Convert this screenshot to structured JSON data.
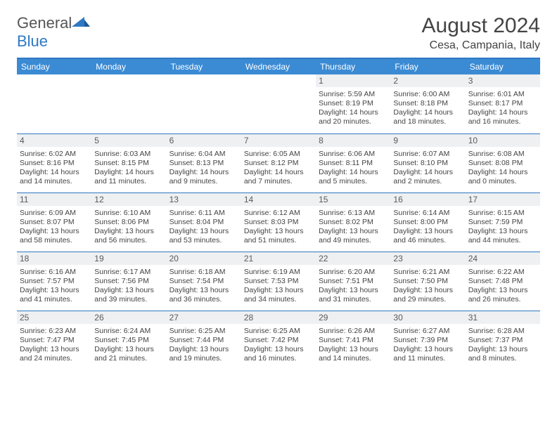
{
  "brand": {
    "name_part1": "General",
    "name_part2": "Blue"
  },
  "title": "August 2024",
  "location": "Cesa, Campania, Italy",
  "calendar": {
    "header_bg": "#3b8bd4",
    "divider_color": "#2f78c4",
    "daynum_bg": "#eef0f2",
    "text_color": "#444444",
    "columns": [
      "Sunday",
      "Monday",
      "Tuesday",
      "Wednesday",
      "Thursday",
      "Friday",
      "Saturday"
    ],
    "weeks": [
      [
        null,
        null,
        null,
        null,
        {
          "d": "1",
          "sunrise": "5:59 AM",
          "sunset": "8:19 PM",
          "dl": "14 hours and 20 minutes."
        },
        {
          "d": "2",
          "sunrise": "6:00 AM",
          "sunset": "8:18 PM",
          "dl": "14 hours and 18 minutes."
        },
        {
          "d": "3",
          "sunrise": "6:01 AM",
          "sunset": "8:17 PM",
          "dl": "14 hours and 16 minutes."
        }
      ],
      [
        {
          "d": "4",
          "sunrise": "6:02 AM",
          "sunset": "8:16 PM",
          "dl": "14 hours and 14 minutes."
        },
        {
          "d": "5",
          "sunrise": "6:03 AM",
          "sunset": "8:15 PM",
          "dl": "14 hours and 11 minutes."
        },
        {
          "d": "6",
          "sunrise": "6:04 AM",
          "sunset": "8:13 PM",
          "dl": "14 hours and 9 minutes."
        },
        {
          "d": "7",
          "sunrise": "6:05 AM",
          "sunset": "8:12 PM",
          "dl": "14 hours and 7 minutes."
        },
        {
          "d": "8",
          "sunrise": "6:06 AM",
          "sunset": "8:11 PM",
          "dl": "14 hours and 5 minutes."
        },
        {
          "d": "9",
          "sunrise": "6:07 AM",
          "sunset": "8:10 PM",
          "dl": "14 hours and 2 minutes."
        },
        {
          "d": "10",
          "sunrise": "6:08 AM",
          "sunset": "8:08 PM",
          "dl": "14 hours and 0 minutes."
        }
      ],
      [
        {
          "d": "11",
          "sunrise": "6:09 AM",
          "sunset": "8:07 PM",
          "dl": "13 hours and 58 minutes."
        },
        {
          "d": "12",
          "sunrise": "6:10 AM",
          "sunset": "8:06 PM",
          "dl": "13 hours and 56 minutes."
        },
        {
          "d": "13",
          "sunrise": "6:11 AM",
          "sunset": "8:04 PM",
          "dl": "13 hours and 53 minutes."
        },
        {
          "d": "14",
          "sunrise": "6:12 AM",
          "sunset": "8:03 PM",
          "dl": "13 hours and 51 minutes."
        },
        {
          "d": "15",
          "sunrise": "6:13 AM",
          "sunset": "8:02 PM",
          "dl": "13 hours and 49 minutes."
        },
        {
          "d": "16",
          "sunrise": "6:14 AM",
          "sunset": "8:00 PM",
          "dl": "13 hours and 46 minutes."
        },
        {
          "d": "17",
          "sunrise": "6:15 AM",
          "sunset": "7:59 PM",
          "dl": "13 hours and 44 minutes."
        }
      ],
      [
        {
          "d": "18",
          "sunrise": "6:16 AM",
          "sunset": "7:57 PM",
          "dl": "13 hours and 41 minutes."
        },
        {
          "d": "19",
          "sunrise": "6:17 AM",
          "sunset": "7:56 PM",
          "dl": "13 hours and 39 minutes."
        },
        {
          "d": "20",
          "sunrise": "6:18 AM",
          "sunset": "7:54 PM",
          "dl": "13 hours and 36 minutes."
        },
        {
          "d": "21",
          "sunrise": "6:19 AM",
          "sunset": "7:53 PM",
          "dl": "13 hours and 34 minutes."
        },
        {
          "d": "22",
          "sunrise": "6:20 AM",
          "sunset": "7:51 PM",
          "dl": "13 hours and 31 minutes."
        },
        {
          "d": "23",
          "sunrise": "6:21 AM",
          "sunset": "7:50 PM",
          "dl": "13 hours and 29 minutes."
        },
        {
          "d": "24",
          "sunrise": "6:22 AM",
          "sunset": "7:48 PM",
          "dl": "13 hours and 26 minutes."
        }
      ],
      [
        {
          "d": "25",
          "sunrise": "6:23 AM",
          "sunset": "7:47 PM",
          "dl": "13 hours and 24 minutes."
        },
        {
          "d": "26",
          "sunrise": "6:24 AM",
          "sunset": "7:45 PM",
          "dl": "13 hours and 21 minutes."
        },
        {
          "d": "27",
          "sunrise": "6:25 AM",
          "sunset": "7:44 PM",
          "dl": "13 hours and 19 minutes."
        },
        {
          "d": "28",
          "sunrise": "6:25 AM",
          "sunset": "7:42 PM",
          "dl": "13 hours and 16 minutes."
        },
        {
          "d": "29",
          "sunrise": "6:26 AM",
          "sunset": "7:41 PM",
          "dl": "13 hours and 14 minutes."
        },
        {
          "d": "30",
          "sunrise": "6:27 AM",
          "sunset": "7:39 PM",
          "dl": "13 hours and 11 minutes."
        },
        {
          "d": "31",
          "sunrise": "6:28 AM",
          "sunset": "7:37 PM",
          "dl": "13 hours and 8 minutes."
        }
      ]
    ],
    "labels": {
      "sunrise": "Sunrise:",
      "sunset": "Sunset:",
      "daylight": "Daylight:"
    }
  }
}
